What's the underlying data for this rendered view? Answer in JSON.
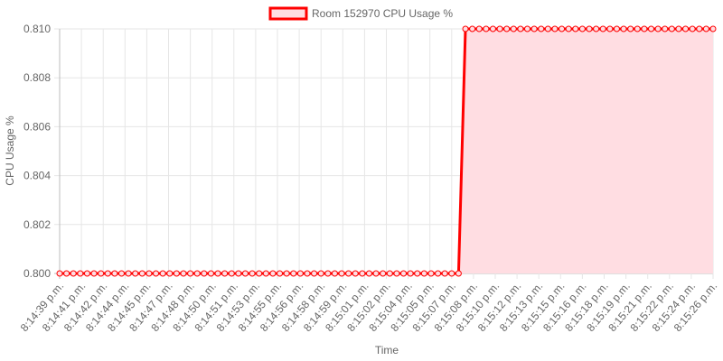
{
  "chart_data": {
    "type": "line",
    "title": "",
    "xlabel": "Time",
    "ylabel": "CPU Usage %",
    "ylim": [
      0.8,
      0.81
    ],
    "y_ticks": [
      "0.800",
      "0.802",
      "0.804",
      "0.806",
      "0.808",
      "0.810"
    ],
    "x_tick_labels": [
      "8:14:39 p.m.",
      "8:14:41 p.m.",
      "8:14:42 p.m.",
      "8:14:44 p.m.",
      "8:14:45 p.m.",
      "8:14:47 p.m.",
      "8:14:48 p.m.",
      "8:14:50 p.m.",
      "8:14:51 p.m.",
      "8:14:53 p.m.",
      "8:14:55 p.m.",
      "8:14:56 p.m.",
      "8:14:58 p.m.",
      "8:14:59 p.m.",
      "8:15:01 p.m.",
      "8:15:02 p.m.",
      "8:15:04 p.m.",
      "8:15:05 p.m.",
      "8:15:07 p.m.",
      "8:15:08 p.m.",
      "8:15:10 p.m.",
      "8:15:12 p.m.",
      "8:15:13 p.m.",
      "8:15:15 p.m.",
      "8:15:16 p.m.",
      "8:15:18 p.m.",
      "8:15:19 p.m.",
      "8:15:21 p.m.",
      "8:15:22 p.m.",
      "8:15:24 p.m.",
      "8:15:26 p.m."
    ],
    "legend": {
      "position": "top"
    },
    "grid": true,
    "series": [
      {
        "name": "Room 152970 CPU Usage %",
        "color": "#ff0000",
        "fill_color": "#ffdde2",
        "point_count": 96,
        "values": [
          0.8,
          0.8,
          0.8,
          0.8,
          0.8,
          0.8,
          0.8,
          0.8,
          0.8,
          0.8,
          0.8,
          0.8,
          0.8,
          0.8,
          0.8,
          0.8,
          0.8,
          0.8,
          0.8,
          0.8,
          0.8,
          0.8,
          0.8,
          0.8,
          0.8,
          0.8,
          0.8,
          0.8,
          0.8,
          0.8,
          0.8,
          0.8,
          0.8,
          0.8,
          0.8,
          0.8,
          0.8,
          0.8,
          0.8,
          0.8,
          0.8,
          0.8,
          0.8,
          0.8,
          0.8,
          0.8,
          0.8,
          0.8,
          0.8,
          0.8,
          0.8,
          0.8,
          0.8,
          0.8,
          0.8,
          0.8,
          0.8,
          0.8,
          0.8,
          0.81,
          0.81,
          0.81,
          0.81,
          0.81,
          0.81,
          0.81,
          0.81,
          0.81,
          0.81,
          0.81,
          0.81,
          0.81,
          0.81,
          0.81,
          0.81,
          0.81,
          0.81,
          0.81,
          0.81,
          0.81,
          0.81,
          0.81,
          0.81,
          0.81,
          0.81,
          0.81,
          0.81,
          0.81,
          0.81,
          0.81,
          0.81,
          0.81,
          0.81,
          0.81,
          0.81,
          0.81
        ]
      }
    ]
  }
}
